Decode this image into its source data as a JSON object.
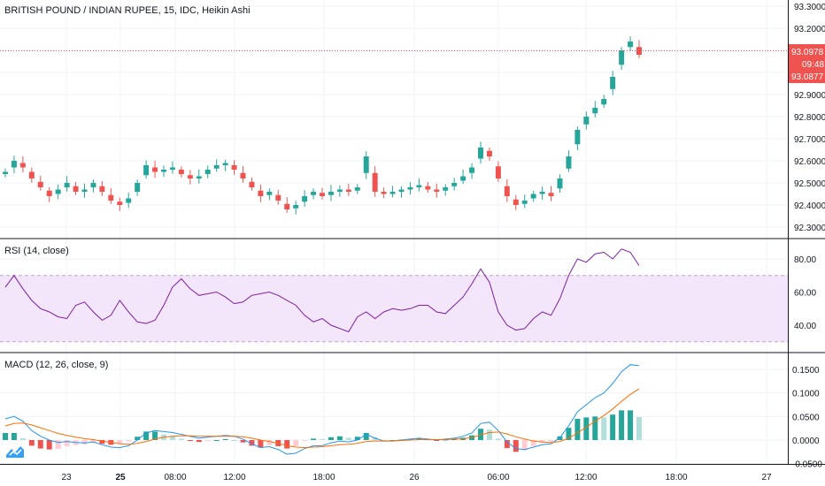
{
  "chart_data": [
    {
      "type": "candlestick",
      "title": "BRITISH POUND / INDIAN RUPEE, 15, IDC, Heikin Ashi",
      "yticks": [
        "93.3000",
        "93.2000",
        "93.1000",
        "93.0000",
        "92.9000",
        "92.8000",
        "92.7000",
        "92.6000",
        "92.5000",
        "92.4000",
        "92.3000"
      ],
      "ylim": [
        92.27,
        93.31
      ],
      "last_price": "93.0978",
      "countdown": "09:48",
      "prev_price": "93.0877",
      "approx_path": [
        92.55,
        92.6,
        92.57,
        92.52,
        92.48,
        92.44,
        92.47,
        92.5,
        92.46,
        92.47,
        92.5,
        92.46,
        92.42,
        92.4,
        92.43,
        92.5,
        92.58,
        92.55,
        92.56,
        92.57,
        92.54,
        92.52,
        92.53,
        92.56,
        92.58,
        92.59,
        92.56,
        92.52,
        92.48,
        92.44,
        92.46,
        92.42,
        92.38,
        92.4,
        92.44,
        92.46,
        92.44,
        92.46,
        92.47,
        92.46,
        92.48,
        92.62,
        92.46,
        92.45,
        92.46,
        92.47,
        92.48,
        92.49,
        92.47,
        92.46,
        92.48,
        92.5,
        92.53,
        92.57,
        92.66,
        92.62,
        92.52,
        92.44,
        92.4,
        92.42,
        92.45,
        92.46,
        92.44,
        92.52,
        92.62,
        92.74,
        92.8,
        92.84,
        92.88,
        92.98,
        93.1,
        93.14,
        93.08
      ]
    },
    {
      "type": "line",
      "title": "RSI (14, close)",
      "yticks": [
        "80.00",
        "60.00",
        "40.00"
      ],
      "ylim": [
        28,
        88
      ],
      "band": [
        30,
        70
      ],
      "approx_path": [
        63,
        70,
        62,
        55,
        50,
        48,
        45,
        44,
        52,
        54,
        48,
        43,
        46,
        55,
        48,
        42,
        41,
        43,
        52,
        63,
        68,
        62,
        58,
        59,
        60,
        57,
        53,
        54,
        58,
        59,
        60,
        58,
        55,
        52,
        46,
        42,
        44,
        40,
        38,
        36,
        45,
        48,
        44,
        48,
        50,
        49,
        50,
        52,
        52,
        48,
        47,
        52,
        57,
        65,
        74,
        66,
        48,
        40,
        37,
        38,
        44,
        48,
        46,
        56,
        70,
        80,
        78,
        83,
        84,
        80,
        86,
        84,
        76
      ]
    },
    {
      "type": "line",
      "title": "MACD (12, 26, close, 9)",
      "yticks": [
        "0.1500",
        "0.1000",
        "0.0500",
        "0.0000",
        "-0.0500"
      ],
      "ylim": [
        -0.055,
        0.17
      ],
      "approx_macd": [
        0.045,
        0.05,
        0.04,
        0.02,
        0.008,
        0.0,
        -0.005,
        -0.003,
        -0.005,
        -0.006,
        -0.004,
        -0.01,
        -0.015,
        -0.016,
        -0.012,
        0.0,
        0.015,
        0.02,
        0.018,
        0.016,
        0.012,
        0.008,
        0.004,
        0.006,
        0.008,
        0.01,
        0.008,
        0.002,
        -0.008,
        -0.016,
        -0.014,
        -0.02,
        -0.03,
        -0.028,
        -0.018,
        -0.012,
        -0.012,
        -0.006,
        -0.002,
        -0.004,
        0.0,
        0.012,
        0.004,
        -0.002,
        -0.002,
        0.0,
        0.002,
        0.004,
        0.002,
        0.0,
        0.002,
        0.004,
        0.008,
        0.015,
        0.035,
        0.038,
        0.02,
        -0.004,
        -0.018,
        -0.02,
        -0.015,
        -0.01,
        -0.008,
        0.005,
        0.03,
        0.06,
        0.075,
        0.09,
        0.1,
        0.12,
        0.145,
        0.16,
        0.158
      ],
      "approx_signal": [
        0.03,
        0.035,
        0.036,
        0.032,
        0.026,
        0.02,
        0.014,
        0.01,
        0.006,
        0.003,
        0.001,
        -0.002,
        -0.005,
        -0.008,
        -0.009,
        -0.007,
        -0.003,
        0.002,
        0.006,
        0.008,
        0.009,
        0.009,
        0.008,
        0.008,
        0.008,
        0.008,
        0.008,
        0.007,
        0.004,
        0.0,
        -0.003,
        -0.007,
        -0.012,
        -0.015,
        -0.016,
        -0.015,
        -0.014,
        -0.012,
        -0.01,
        -0.009,
        -0.007,
        -0.003,
        -0.002,
        -0.002,
        -0.002,
        -0.001,
        0.0,
        0.001,
        0.001,
        0.001,
        0.001,
        0.002,
        0.003,
        0.005,
        0.011,
        0.016,
        0.017,
        0.013,
        0.007,
        0.002,
        -0.002,
        -0.004,
        -0.005,
        -0.003,
        0.004,
        0.015,
        0.027,
        0.04,
        0.052,
        0.066,
        0.082,
        0.097,
        0.109
      ]
    }
  ],
  "time_axis": {
    "labels": [
      "23",
      "25",
      "08:00",
      "12:00",
      "18:00",
      "26",
      "06:00",
      "12:00",
      "18:00",
      "27"
    ]
  },
  "colors": {
    "up": "#26a69a",
    "down": "#ef5350",
    "rsi_line": "#7b1fa2",
    "rsi_band": "#f3e5fa",
    "macd_line": "#2196f3",
    "signal_line": "#ff6d00",
    "price_line": "#ef5350"
  }
}
